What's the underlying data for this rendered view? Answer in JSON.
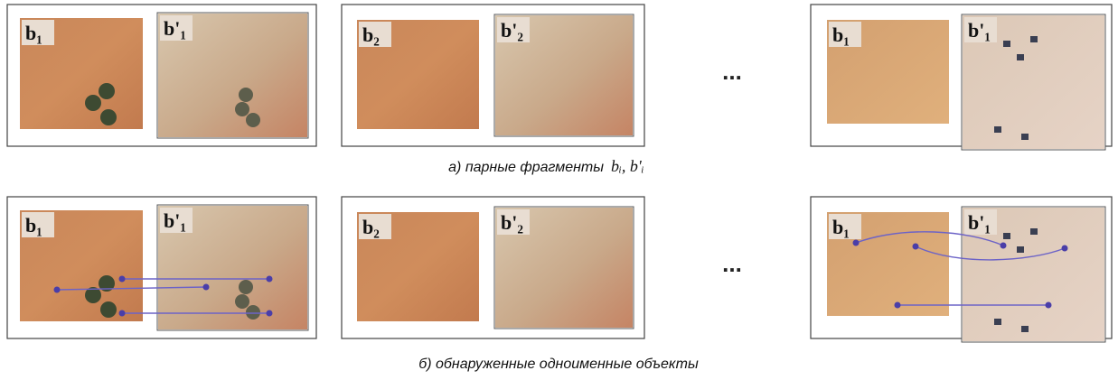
{
  "rows": [
    {
      "panels": [
        {
          "left": "b₁",
          "right": "b'₁"
        },
        {
          "left": "b₂",
          "right": "b'₂"
        },
        {
          "left": "b₁",
          "right": "b'₁"
        }
      ],
      "ellipsis": "...",
      "caption": "а) парные фрагменты",
      "formula": "bᵢ, b'ᵢ"
    },
    {
      "panels": [
        {
          "left": "b₁",
          "right": "b'₁"
        },
        {
          "left": "b₂",
          "right": "b'₂"
        },
        {
          "left": "b₁",
          "right": "b'₁"
        }
      ],
      "ellipsis": "...",
      "caption": "б) обнаруженные одноименные объекты"
    }
  ]
}
